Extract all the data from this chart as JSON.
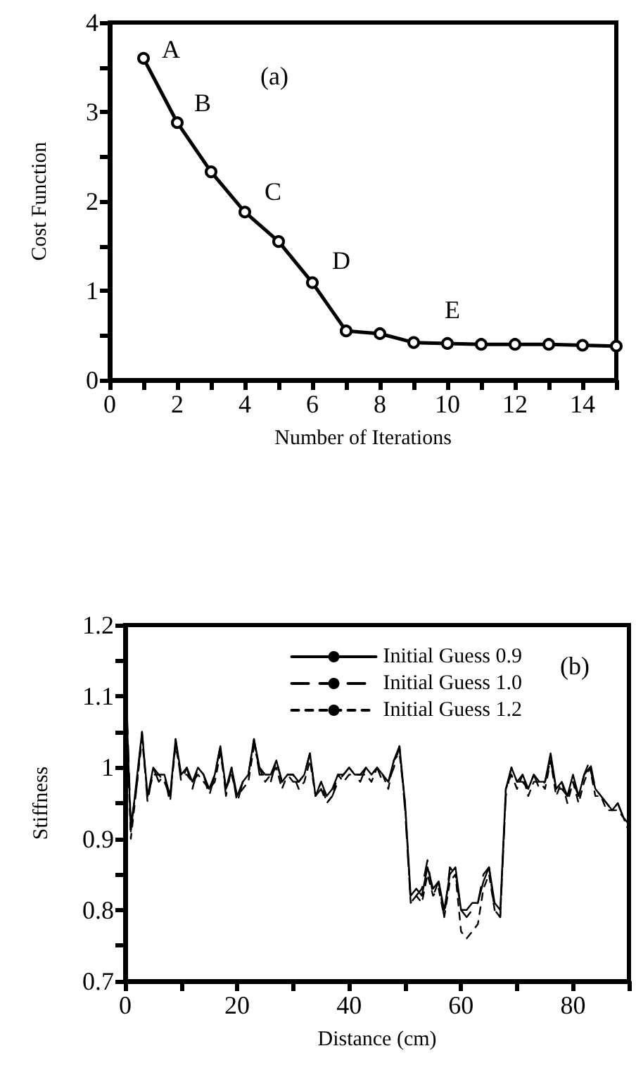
{
  "chart_data": [
    {
      "type": "line",
      "xlabel": "Number of Iterations",
      "ylabel": "Cost Function",
      "x": [
        1,
        2,
        3,
        4,
        5,
        6,
        7,
        8,
        9,
        10,
        11,
        12,
        13,
        14,
        15
      ],
      "series": [
        {
          "color": "#000000",
          "values": [
            3.6,
            2.88,
            2.33,
            1.88,
            1.55,
            1.09,
            0.55,
            0.52,
            0.42,
            0.41,
            0.4,
            0.4,
            0.4,
            0.39,
            0.38
          ]
        }
      ],
      "xlim": [
        0,
        15
      ],
      "xticks": [
        0,
        {
          "value": 1,
          "label": null
        },
        2,
        {
          "value": 3,
          "label": null
        },
        4,
        {
          "value": 5,
          "label": null
        },
        6,
        {
          "value": 7,
          "label": null
        },
        8,
        {
          "value": 9,
          "label": null
        },
        10,
        {
          "value": 11,
          "label": null
        },
        12,
        {
          "value": 13,
          "label": null
        },
        14,
        {
          "value": 15,
          "label": null
        }
      ],
      "ylim": [
        0,
        4
      ],
      "yticks": [
        0,
        {
          "value": 0.5,
          "label": null
        },
        1,
        {
          "value": 1.5,
          "label": null
        },
        2,
        {
          "value": 2.5,
          "label": null
        },
        3,
        {
          "value": 3.5,
          "label": null
        },
        4
      ],
      "marker": "circle",
      "line_style": "solid",
      "grid": false,
      "legend": false,
      "annotations": [
        "(a)",
        "A",
        "B",
        "C",
        "D",
        "E"
      ]
    },
    {
      "type": "line",
      "xlabel": "Distance (cm)",
      "ylabel": "Stiffness",
      "x": [
        0,
        1,
        2,
        3,
        4,
        5,
        6,
        7,
        8,
        9,
        10,
        11,
        12,
        13,
        14,
        15,
        16,
        17,
        18,
        19,
        20,
        21,
        22,
        23,
        24,
        25,
        26,
        27,
        28,
        29,
        30,
        31,
        32,
        33,
        34,
        35,
        36,
        37,
        38,
        39,
        40,
        41,
        42,
        43,
        44,
        45,
        46,
        47,
        48,
        49,
        50,
        51,
        52,
        53,
        54,
        55,
        56,
        57,
        58,
        59,
        60,
        61,
        62,
        63,
        64,
        65,
        66,
        67,
        68,
        69,
        70,
        71,
        72,
        73,
        74,
        75,
        76,
        77,
        78,
        79,
        80,
        81,
        82,
        83,
        84,
        85,
        86,
        87,
        88,
        89,
        90
      ],
      "series": [
        {
          "name": "Initial Guess 0.9",
          "color": "#000000",
          "line_style": "solid",
          "values": [
            1.14,
            0.91,
            0.98,
            1.05,
            0.96,
            1.0,
            0.99,
            0.99,
            0.96,
            1.04,
            0.99,
            1.0,
            0.98,
            1.0,
            0.99,
            0.97,
            0.99,
            1.03,
            0.97,
            1.0,
            0.96,
            0.98,
            0.99,
            1.04,
            1.0,
            0.99,
            0.99,
            1.01,
            0.98,
            0.99,
            0.99,
            0.98,
            0.99,
            1.02,
            0.96,
            0.98,
            0.96,
            0.97,
            0.99,
            0.99,
            1.0,
            0.99,
            0.99,
            1.0,
            0.99,
            1.0,
            0.99,
            0.98,
            1.01,
            1.03,
            0.95,
            0.82,
            0.83,
            0.82,
            0.86,
            0.83,
            0.84,
            0.8,
            0.85,
            0.86,
            0.8,
            0.8,
            0.81,
            0.81,
            0.84,
            0.86,
            0.81,
            0.8,
            0.97,
            1.0,
            0.98,
            0.99,
            0.97,
            0.99,
            0.98,
            0.98,
            1.02,
            0.97,
            0.98,
            0.96,
            0.99,
            0.96,
            0.99,
            1.0,
            0.97,
            0.96,
            0.95,
            0.94,
            0.95,
            0.93,
            0.92
          ]
        },
        {
          "name": "Initial Guess 1.0",
          "color": "#000000",
          "line_style": "dashed",
          "values": [
            1.15,
            0.92,
            0.97,
            1.05,
            0.95,
            1.0,
            0.98,
            0.99,
            0.95,
            1.04,
            0.98,
            1.0,
            0.97,
            1.0,
            0.99,
            0.96,
            0.99,
            1.03,
            0.96,
            1.0,
            0.95,
            0.98,
            0.99,
            1.04,
            0.99,
            0.99,
            0.98,
            1.01,
            0.98,
            0.99,
            0.98,
            0.98,
            0.99,
            1.02,
            0.96,
            0.97,
            0.95,
            0.96,
            0.98,
            0.99,
            1.0,
            0.99,
            0.98,
            1.0,
            0.99,
            1.0,
            0.98,
            0.98,
            1.0,
            1.03,
            0.94,
            0.81,
            0.82,
            0.83,
            0.87,
            0.82,
            0.84,
            0.79,
            0.86,
            0.85,
            0.8,
            0.79,
            0.8,
            0.81,
            0.85,
            0.86,
            0.8,
            0.79,
            0.96,
            1.0,
            0.98,
            0.98,
            0.97,
            0.99,
            0.97,
            0.98,
            1.01,
            0.97,
            0.97,
            0.96,
            0.98,
            0.96,
            0.99,
            1.01,
            0.97,
            0.96,
            0.95,
            0.94,
            0.95,
            0.93,
            0.92
          ]
        },
        {
          "name": "Initial Guess 1.2",
          "color": "#000000",
          "line_style": "dotted",
          "values": [
            1.12,
            0.9,
            0.97,
            1.04,
            0.96,
            0.99,
            0.99,
            0.98,
            0.96,
            1.03,
            0.99,
            0.99,
            0.98,
            0.99,
            0.98,
            0.97,
            0.98,
            1.02,
            0.97,
            0.99,
            0.96,
            0.97,
            0.98,
            1.03,
            1.0,
            0.98,
            0.99,
            1.0,
            0.97,
            0.99,
            0.99,
            0.97,
            0.98,
            1.01,
            0.96,
            0.98,
            0.95,
            0.96,
            0.99,
            0.98,
            0.99,
            0.99,
            0.99,
            0.99,
            0.98,
            1.0,
            0.99,
            0.97,
            1.01,
            1.02,
            0.95,
            0.81,
            0.82,
            0.81,
            0.85,
            0.82,
            0.83,
            0.79,
            0.84,
            0.85,
            0.77,
            0.76,
            0.77,
            0.78,
            0.83,
            0.85,
            0.8,
            0.79,
            0.97,
            0.99,
            0.97,
            0.99,
            0.96,
            0.98,
            0.98,
            0.97,
            1.01,
            0.96,
            0.98,
            0.95,
            0.98,
            0.95,
            0.98,
            1.0,
            0.96,
            0.96,
            0.94,
            0.94,
            0.94,
            0.93,
            0.91
          ]
        }
      ],
      "xlim": [
        0,
        90
      ],
      "xticks": [
        0,
        {
          "value": 10,
          "label": null
        },
        20,
        {
          "value": 30,
          "label": null
        },
        40,
        {
          "value": 50,
          "label": null
        },
        60,
        {
          "value": 70,
          "label": null
        },
        80,
        {
          "value": 90,
          "label": null
        }
      ],
      "ylim": [
        0.7,
        1.2
      ],
      "yticks": [
        0.7,
        {
          "value": 0.75,
          "label": null
        },
        0.8,
        {
          "value": 0.85,
          "label": null
        },
        0.9,
        {
          "value": 0.95,
          "label": null
        },
        1,
        {
          "value": 1.05,
          "label": null
        },
        1.1,
        {
          "value": 1.15,
          "label": null
        },
        1.2
      ],
      "marker": "none",
      "grid": false,
      "legend": "top right",
      "annotations": [
        "(b)"
      ]
    }
  ]
}
